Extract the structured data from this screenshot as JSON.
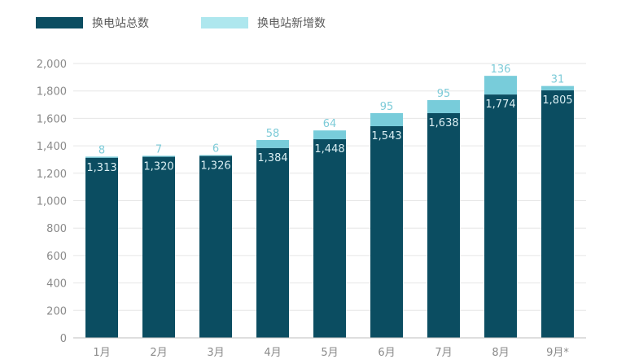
{
  "chart_data": {
    "type": "bar",
    "stacked": true,
    "categories": [
      "1月",
      "2月",
      "3月",
      "4月",
      "5月",
      "6月",
      "7月",
      "8月",
      "9月*"
    ],
    "series": [
      {
        "name": "换电站总数",
        "values": [
          1313,
          1320,
          1326,
          1384,
          1448,
          1543,
          1638,
          1774,
          1805
        ],
        "labels": [
          "1,313",
          "1,320",
          "1,326",
          "1,384",
          "1,448",
          "1,543",
          "1,638",
          "1,774",
          "1,805"
        ],
        "color": "#0B4D61"
      },
      {
        "name": "换电站新增数",
        "values": [
          8,
          7,
          6,
          58,
          64,
          95,
          95,
          136,
          31
        ],
        "labels": [
          "8",
          "7",
          "6",
          "58",
          "64",
          "95",
          "95",
          "136",
          "31"
        ],
        "color": "#78CCDA"
      }
    ],
    "ylim": [
      0,
      2000
    ],
    "yticks": [
      0,
      200,
      400,
      600,
      800,
      1000,
      1200,
      1400,
      1600,
      1800,
      2000
    ],
    "yticklabels": [
      "0",
      "200",
      "400",
      "600",
      "800",
      "1,000",
      "1,200",
      "1,400",
      "1,600",
      "1,800",
      "2,000"
    ],
    "grid": true,
    "legend": "top-left",
    "legend_swatch_colors": [
      "#0B4D61",
      "#AEE7EE"
    ],
    "title": "",
    "xlabel": "",
    "ylabel": ""
  }
}
